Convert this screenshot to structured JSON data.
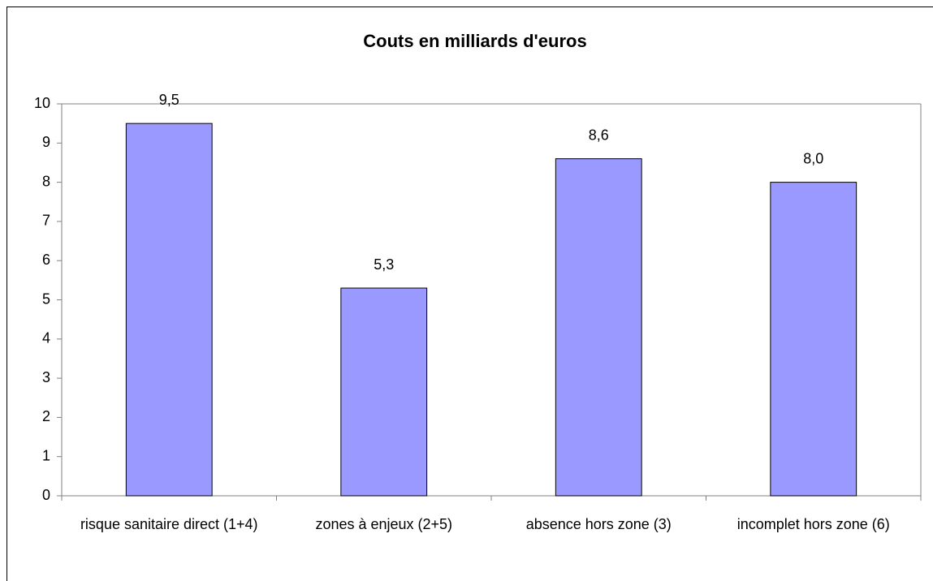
{
  "chart_data": {
    "type": "bar",
    "title": "Couts en milliards d'euros",
    "categories": [
      "risque sanitaire direct (1+4)",
      "zones à enjeux (2+5)",
      "absence hors zone (3)",
      "incomplet hors zone (6)"
    ],
    "values": [
      9.5,
      5.3,
      8.6,
      8.0
    ],
    "value_labels": [
      "9,5",
      "5,3",
      "8,6",
      "8,0"
    ],
    "color": "#9999ff",
    "ylim": [
      0,
      10
    ],
    "yticks": [
      0,
      1,
      2,
      3,
      4,
      5,
      6,
      7,
      8,
      9,
      10
    ],
    "grid": false
  }
}
